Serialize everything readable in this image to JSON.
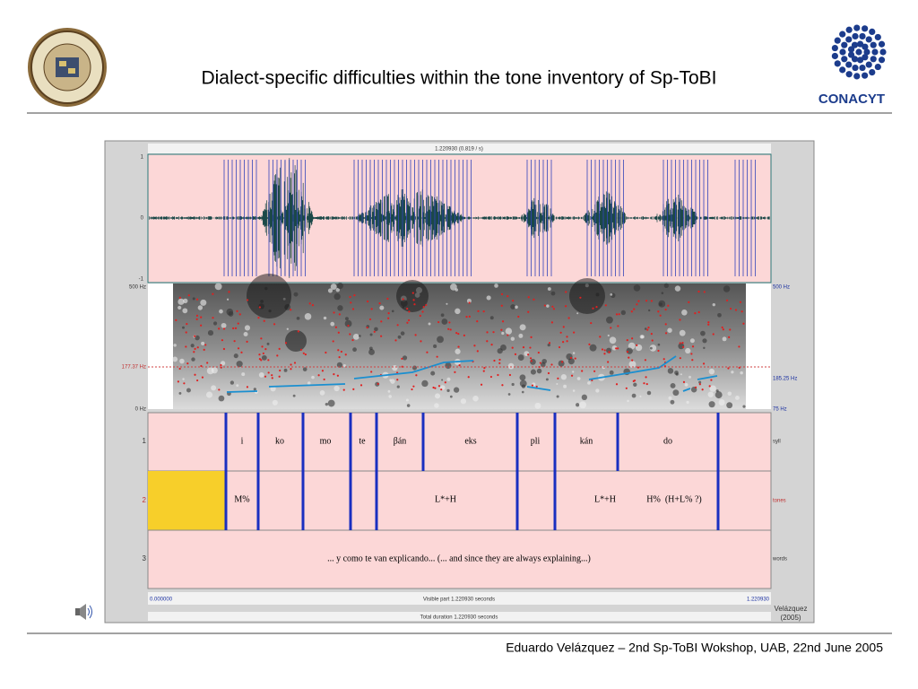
{
  "header": {
    "title": "Dialect-specific difficulties within the tone inventory of Sp-ToBI",
    "logo_text": "CONACYT"
  },
  "praat": {
    "top_label": "1.220930 (0.819 / s)",
    "wave_ticks": [
      "1",
      "0",
      "-1"
    ],
    "spec_left": [
      "500 Hz",
      "177.37 Hz",
      "0 Hz"
    ],
    "spec_right": [
      "500 Hz",
      "185.25 Hz",
      "75 Hz"
    ],
    "tiers": [
      {
        "number": "1",
        "name": "syll",
        "labels": [
          "i",
          "ko",
          "mo",
          "te",
          "βán",
          "eks",
          "pli",
          "kán",
          "do"
        ]
      },
      {
        "number": "2",
        "name": "tones",
        "labels": [
          "M%",
          "L*+H",
          "L*+H",
          "H%  (H+L% ?)"
        ]
      },
      {
        "number": "3",
        "name": "words",
        "labels": [
          "... y como te van explicando... (... and since they are always explaining...)"
        ]
      }
    ],
    "start": "0.000000",
    "visible": "Visible part 1.220930 seconds",
    "end": "1.220930",
    "total": "Total duration 1.220930 seconds",
    "credit": [
      "Velázquez",
      "(2005)"
    ]
  },
  "footer": "Eduardo Velázquez – 2nd Sp-ToBI Wokshop, UAB, 22nd June 2005"
}
